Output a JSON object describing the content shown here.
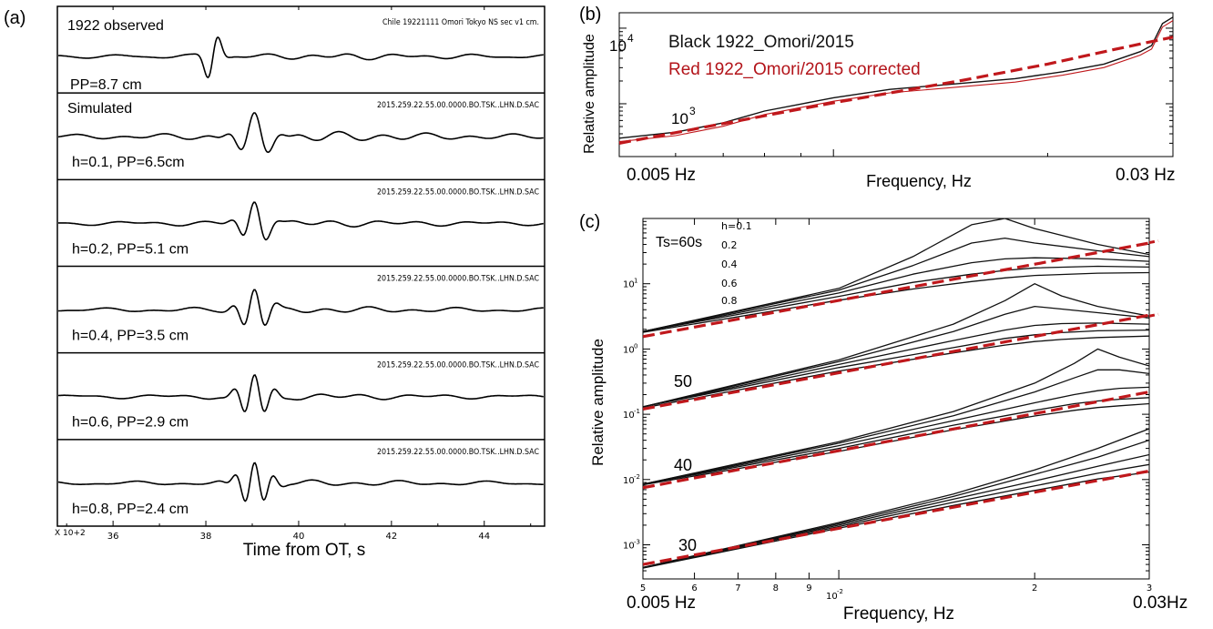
{
  "chart_data": [
    {
      "panel": "(a)",
      "type": "line",
      "xlabel": "Time from OT, s",
      "x_multiplier": "X 10+2",
      "x_ticks": [
        "36",
        "38",
        "40",
        "42",
        "44"
      ],
      "xlim": [
        34.8,
        45.3
      ],
      "traces": [
        {
          "name": "1922 observed",
          "header": "Chile 19221111 Omori Tokyo NS sec v1 cm.",
          "pp": "PP=8.7 cm",
          "peak_time": 38.15
        },
        {
          "name": "Simulated",
          "header": "2015.259.22.55.00.0000.BO.TSK..LHN.D.SAC",
          "pp": "h=0.1, PP=6.5cm",
          "h": 0.1,
          "pp_cm": 6.5
        },
        {
          "name": "",
          "header": "2015.259.22.55.00.0000.BO.TSK..LHN.D.SAC",
          "pp": "h=0.2, PP=5.1 cm",
          "h": 0.2,
          "pp_cm": 5.1
        },
        {
          "name": "",
          "header": "2015.259.22.55.00.0000.BO.TSK..LHN.D.SAC",
          "pp": "h=0.4, PP=3.5 cm",
          "h": 0.4,
          "pp_cm": 3.5
        },
        {
          "name": "",
          "header": "2015.259.22.55.00.0000.BO.TSK..LHN.D.SAC",
          "pp": "h=0.6, PP=2.9 cm",
          "h": 0.6,
          "pp_cm": 2.9
        },
        {
          "name": "",
          "header": "2015.259.22.55.00.0000.BO.TSK..LHN.D.SAC",
          "pp": "h=0.8, PP=2.4 cm",
          "h": 0.8,
          "pp_cm": 2.4
        }
      ]
    },
    {
      "panel": "(b)",
      "type": "line",
      "xlabel": "Frequency, Hz",
      "ylabel": "Relative amplitude",
      "x_scale": "log",
      "y_scale": "log",
      "xlim": [
        0.005,
        0.03
      ],
      "ylim": [
        200,
        16000
      ],
      "x_tick_labels": [
        "0.005 Hz",
        "0.03 Hz"
      ],
      "y_tick_labels": [
        "10",
        "10"
      ],
      "y_tick_exponents": [
        "4",
        "3"
      ],
      "legend": [
        "Black  1922_Omori/2015",
        "Red 1922_Omori/2015 corrected"
      ],
      "series": [
        {
          "name": "Black  1922_Omori/2015",
          "color": "#111111",
          "x": [
            0.005,
            0.006,
            0.007,
            0.008,
            0.009,
            0.01,
            0.012,
            0.015,
            0.018,
            0.021,
            0.024,
            0.027,
            0.028,
            0.029,
            0.03
          ],
          "y": [
            350,
            420,
            560,
            800,
            990,
            1200,
            1550,
            1850,
            2150,
            2650,
            3350,
            4900,
            5900,
            11500,
            14000
          ]
        },
        {
          "name": "Red 1922_Omori/2015 corrected",
          "color": "#c0181c",
          "x": [
            0.005,
            0.01,
            0.015,
            0.02,
            0.025,
            0.03
          ],
          "y": [
            300,
            1030,
            2000,
            3350,
            5300,
            7600
          ]
        }
      ]
    },
    {
      "panel": "(c)",
      "type": "line",
      "xlabel": "Frequency, Hz",
      "ylabel": "Relative amplitude",
      "x_scale": "log",
      "y_scale": "log",
      "xlim": [
        0.005,
        0.03
      ],
      "ylim": [
        0.0003,
        100
      ],
      "x_tick_labels": [
        "5",
        "6",
        "7",
        "8",
        "9",
        "2",
        "3"
      ],
      "x_tick_values": [
        0.005,
        0.006,
        0.007,
        0.008,
        0.009,
        0.02,
        0.03
      ],
      "x_decade_label": "10",
      "x_decade_exponent": "-2",
      "x_end_labels": [
        "0.005 Hz",
        "0.03Hz"
      ],
      "y_tick_labels": [
        "10",
        "10",
        "10",
        "10",
        "10"
      ],
      "y_tick_exponents": [
        "1",
        "0",
        "-1",
        "-2",
        "-3"
      ],
      "y_tick_values": [
        10,
        1,
        0.1,
        0.01,
        0.001
      ],
      "legend_title": "Ts=60s",
      "h_labels": [
        "h=0.1",
        "0.2",
        "0.4",
        "0.6",
        "0.8"
      ],
      "group_labels": [
        "50",
        "40",
        "30"
      ],
      "groups": [
        {
          "Ts": 60,
          "red_x": [
            0.005,
            0.03
          ],
          "red_y": [
            1.55,
            42
          ],
          "curves": [
            {
              "h": 0.1,
              "x": [
                0.005,
                0.01,
                0.013,
                0.016,
                0.018,
                0.02,
                0.025,
                0.03
              ],
              "y": [
                1.85,
                8.5,
                26,
                80,
                100,
                70,
                40,
                28
              ]
            },
            {
              "h": 0.2,
              "x": [
                0.005,
                0.01,
                0.013,
                0.016,
                0.018,
                0.02,
                0.025,
                0.03
              ],
              "y": [
                1.85,
                8.0,
                19,
                42,
                50,
                42,
                32,
                26
              ]
            },
            {
              "h": 0.4,
              "x": [
                0.005,
                0.01,
                0.013,
                0.016,
                0.018,
                0.02,
                0.025,
                0.03
              ],
              "y": [
                1.85,
                7.2,
                14,
                21,
                24,
                25,
                24,
                22
              ]
            },
            {
              "h": 0.6,
              "x": [
                0.005,
                0.01,
                0.013,
                0.016,
                0.018,
                0.02,
                0.025,
                0.03
              ],
              "y": [
                1.85,
                6.4,
                10.5,
                14,
                16,
                17.5,
                18.5,
                18
              ]
            },
            {
              "h": 0.8,
              "x": [
                0.005,
                0.01,
                0.013,
                0.016,
                0.018,
                0.02,
                0.025,
                0.03
              ],
              "y": [
                1.8,
                5.6,
                8.3,
                10.8,
                12.3,
                13.4,
                14.5,
                14.8
              ]
            }
          ]
        },
        {
          "Ts": 50,
          "red_x": [
            0.005,
            0.03
          ],
          "red_y": [
            0.12,
            3.3
          ],
          "curves": [
            {
              "h": 0.1,
              "x": [
                0.005,
                0.01,
                0.015,
                0.018,
                0.02,
                0.022,
                0.025,
                0.03
              ],
              "y": [
                0.13,
                0.68,
                2.4,
                5.5,
                10,
                6.5,
                4.5,
                3.2
              ]
            },
            {
              "h": 0.2,
              "x": [
                0.005,
                0.01,
                0.015,
                0.018,
                0.02,
                0.022,
                0.025,
                0.03
              ],
              "y": [
                0.13,
                0.64,
                1.85,
                3.4,
                4.5,
                4.1,
                3.6,
                3.0
              ]
            },
            {
              "h": 0.4,
              "x": [
                0.005,
                0.01,
                0.015,
                0.018,
                0.02,
                0.022,
                0.025,
                0.03
              ],
              "y": [
                0.13,
                0.58,
                1.35,
                1.95,
                2.3,
                2.45,
                2.5,
                2.4
              ]
            },
            {
              "h": 0.6,
              "x": [
                0.005,
                0.01,
                0.015,
                0.018,
                0.02,
                0.022,
                0.025,
                0.03
              ],
              "y": [
                0.13,
                0.52,
                1.05,
                1.45,
                1.65,
                1.78,
                1.9,
                1.95
              ]
            },
            {
              "h": 0.8,
              "x": [
                0.005,
                0.01,
                0.015,
                0.018,
                0.02,
                0.022,
                0.025,
                0.03
              ],
              "y": [
                0.125,
                0.46,
                0.87,
                1.15,
                1.3,
                1.4,
                1.5,
                1.58
              ]
            }
          ]
        },
        {
          "Ts": 40,
          "red_x": [
            0.005,
            0.03
          ],
          "red_y": [
            0.0075,
            0.22
          ],
          "curves": [
            {
              "h": 0.1,
              "x": [
                0.005,
                0.01,
                0.015,
                0.02,
                0.023,
                0.025,
                0.027,
                0.03
              ],
              "y": [
                0.0085,
                0.038,
                0.11,
                0.3,
                0.6,
                1.0,
                0.75,
                0.55
              ]
            },
            {
              "h": 0.2,
              "x": [
                0.005,
                0.01,
                0.015,
                0.02,
                0.023,
                0.025,
                0.027,
                0.03
              ],
              "y": [
                0.0085,
                0.036,
                0.095,
                0.22,
                0.36,
                0.48,
                0.48,
                0.42
              ]
            },
            {
              "h": 0.4,
              "x": [
                0.005,
                0.01,
                0.015,
                0.02,
                0.023,
                0.025,
                0.027,
                0.03
              ],
              "y": [
                0.0085,
                0.033,
                0.08,
                0.15,
                0.2,
                0.23,
                0.25,
                0.26
              ]
            },
            {
              "h": 0.6,
              "x": [
                0.005,
                0.01,
                0.015,
                0.02,
                0.023,
                0.025,
                0.027,
                0.03
              ],
              "y": [
                0.0085,
                0.03,
                0.068,
                0.115,
                0.145,
                0.16,
                0.17,
                0.18
              ]
            },
            {
              "h": 0.8,
              "x": [
                0.005,
                0.01,
                0.015,
                0.02,
                0.023,
                0.025,
                0.027,
                0.03
              ],
              "y": [
                0.0083,
                0.027,
                0.058,
                0.094,
                0.115,
                0.127,
                0.135,
                0.145
              ]
            }
          ]
        },
        {
          "Ts": 30,
          "red_x": [
            0.005,
            0.03
          ],
          "red_y": [
            0.0005,
            0.0135
          ],
          "curves": [
            {
              "h": 0.1,
              "x": [
                0.005,
                0.01,
                0.015,
                0.02,
                0.025,
                0.03
              ],
              "y": [
                0.00045,
                0.0022,
                0.006,
                0.014,
                0.03,
                0.06
              ]
            },
            {
              "h": 0.2,
              "x": [
                0.005,
                0.01,
                0.015,
                0.02,
                0.025,
                0.03
              ],
              "y": [
                0.00045,
                0.0021,
                0.0055,
                0.012,
                0.022,
                0.04
              ]
            },
            {
              "h": 0.4,
              "x": [
                0.005,
                0.01,
                0.015,
                0.02,
                0.025,
                0.03
              ],
              "y": [
                0.00045,
                0.002,
                0.005,
                0.0095,
                0.016,
                0.024
              ]
            },
            {
              "h": 0.6,
              "x": [
                0.005,
                0.01,
                0.015,
                0.02,
                0.025,
                0.03
              ],
              "y": [
                0.00045,
                0.0019,
                0.0045,
                0.008,
                0.0125,
                0.017
              ]
            },
            {
              "h": 0.8,
              "x": [
                0.005,
                0.01,
                0.015,
                0.02,
                0.025,
                0.03
              ],
              "y": [
                0.00044,
                0.0018,
                0.004,
                0.0068,
                0.0102,
                0.013
              ]
            }
          ]
        }
      ]
    }
  ]
}
